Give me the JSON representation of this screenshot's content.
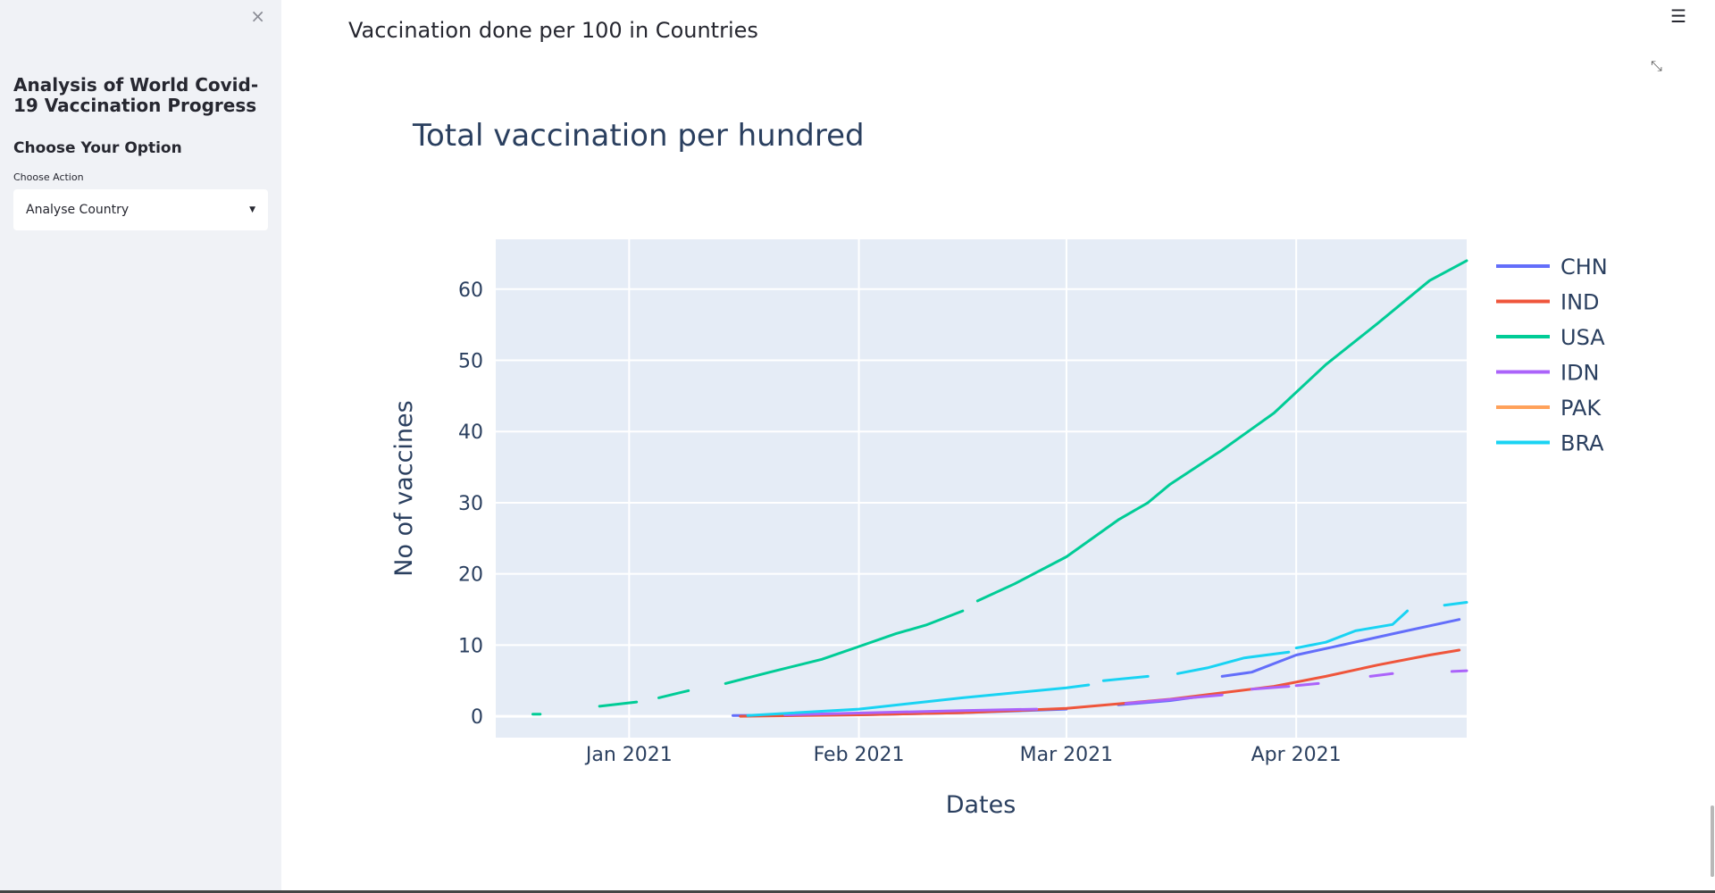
{
  "sidebar": {
    "close_glyph": "×",
    "title": "Analysis of World Covid-19 Vaccination Progress",
    "subheader": "Choose Your Option",
    "select_label": "Choose Action",
    "select_value": "Analyse Country"
  },
  "main": {
    "header": "Vaccination done per 100 in Countries"
  },
  "chart_data": {
    "type": "line",
    "title": "Total vaccination per hundred",
    "xlabel": "Dates",
    "ylabel": "No of vaccines",
    "x_range": [
      "2020-12-14",
      "2021-04-24"
    ],
    "ylim": [
      -3,
      67
    ],
    "x_ticks": [
      {
        "date": "2021-01-01",
        "label": "Jan 2021"
      },
      {
        "date": "2021-02-01",
        "label": "Feb 2021"
      },
      {
        "date": "2021-03-01",
        "label": "Mar 2021"
      },
      {
        "date": "2021-04-01",
        "label": "Apr 2021"
      }
    ],
    "y_ticks": [
      0,
      10,
      20,
      30,
      40,
      50,
      60
    ],
    "plot_bg": "#e5ecf6",
    "grid": true,
    "legend_position": "right",
    "series": [
      {
        "name": "CHN",
        "color": "#636efa",
        "segments": [
          [
            [
              "2021-01-15",
              0.1
            ],
            [
              "2021-02-01",
              0.2
            ],
            [
              "2021-02-15",
              0.5
            ],
            [
              "2021-03-01",
              1.0
            ]
          ],
          [
            [
              "2021-03-08",
              1.6
            ],
            [
              "2021-03-15",
              2.2
            ],
            [
              "2021-03-22",
              3.2
            ]
          ],
          [
            [
              "2021-03-22",
              5.6
            ],
            [
              "2021-03-26",
              6.2
            ],
            [
              "2021-04-01",
              8.6
            ],
            [
              "2021-04-08",
              10.2
            ],
            [
              "2021-04-15",
              11.8
            ],
            [
              "2021-04-23",
              13.6
            ]
          ]
        ]
      },
      {
        "name": "IND",
        "color": "#ef553b",
        "segments": [
          [
            [
              "2021-01-16",
              0.0
            ],
            [
              "2021-02-01",
              0.2
            ],
            [
              "2021-02-15",
              0.5
            ],
            [
              "2021-03-01",
              1.1
            ],
            [
              "2021-03-15",
              2.4
            ],
            [
              "2021-03-29",
              4.2
            ],
            [
              "2021-04-05",
              5.6
            ],
            [
              "2021-04-12",
              7.2
            ],
            [
              "2021-04-19",
              8.6
            ],
            [
              "2021-04-23",
              9.3
            ]
          ]
        ]
      },
      {
        "name": "USA",
        "color": "#00cc96",
        "segments": [
          [
            [
              "2020-12-19",
              0.3
            ],
            [
              "2020-12-20",
              0.3
            ]
          ],
          [
            [
              "2020-12-28",
              1.4
            ],
            [
              "2021-01-02",
              2.0
            ]
          ],
          [
            [
              "2021-01-05",
              2.6
            ],
            [
              "2021-01-09",
              3.6
            ]
          ],
          [
            [
              "2021-01-14",
              4.6
            ],
            [
              "2021-01-20",
              6.2
            ],
            [
              "2021-01-27",
              8.0
            ],
            [
              "2021-02-01",
              9.8
            ],
            [
              "2021-02-06",
              11.6
            ],
            [
              "2021-02-10",
              12.8
            ],
            [
              "2021-02-15",
              14.8
            ]
          ],
          [
            [
              "2021-02-17",
              16.2
            ],
            [
              "2021-02-22",
              18.6
            ],
            [
              "2021-03-01",
              22.4
            ],
            [
              "2021-03-08",
              27.6
            ],
            [
              "2021-03-12",
              30.0
            ],
            [
              "2021-03-15",
              32.6
            ],
            [
              "2021-03-22",
              37.4
            ],
            [
              "2021-03-29",
              42.6
            ],
            [
              "2021-04-05",
              49.4
            ],
            [
              "2021-04-12",
              55.2
            ],
            [
              "2021-04-19",
              61.2
            ],
            [
              "2021-04-24",
              64.0
            ]
          ]
        ]
      },
      {
        "name": "IDN",
        "color": "#ab63fa",
        "segments": [
          [
            [
              "2021-01-22",
              0.2
            ],
            [
              "2021-02-15",
              0.8
            ],
            [
              "2021-02-25",
              1.0
            ]
          ],
          [
            [
              "2021-03-09",
              1.8
            ],
            [
              "2021-03-22",
              3.0
            ]
          ],
          [
            [
              "2021-03-26",
              3.8
            ],
            [
              "2021-03-31",
              4.2
            ]
          ],
          [
            [
              "2021-04-01",
              4.3
            ],
            [
              "2021-04-04",
              4.6
            ]
          ],
          [
            [
              "2021-04-11",
              5.6
            ],
            [
              "2021-04-14",
              6.0
            ]
          ],
          [
            [
              "2021-04-22",
              6.3
            ],
            [
              "2021-04-24",
              6.4
            ]
          ]
        ]
      },
      {
        "name": "PAK",
        "color": "#ffa15a",
        "segments": []
      },
      {
        "name": "BRA",
        "color": "#19d3f3",
        "segments": [
          [
            [
              "2021-01-17",
              0.1
            ],
            [
              "2021-02-01",
              1.0
            ],
            [
              "2021-02-15",
              2.6
            ],
            [
              "2021-03-01",
              4.0
            ],
            [
              "2021-03-04",
              4.4
            ]
          ],
          [
            [
              "2021-03-06",
              5.0
            ],
            [
              "2021-03-12",
              5.6
            ]
          ],
          [
            [
              "2021-03-16",
              6.0
            ],
            [
              "2021-03-20",
              6.8
            ],
            [
              "2021-03-25",
              8.2
            ],
            [
              "2021-03-31",
              9.0
            ]
          ],
          [
            [
              "2021-04-01",
              9.6
            ],
            [
              "2021-04-05",
              10.4
            ],
            [
              "2021-04-09",
              12.0
            ],
            [
              "2021-04-14",
              12.9
            ],
            [
              "2021-04-16",
              14.8
            ]
          ],
          [
            [
              "2021-04-21",
              15.6
            ],
            [
              "2021-04-24",
              16.0
            ]
          ]
        ]
      }
    ]
  }
}
